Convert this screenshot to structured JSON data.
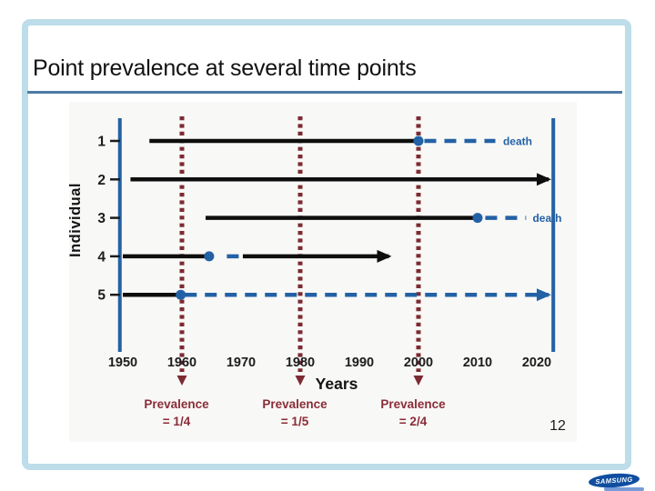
{
  "slide": {
    "title": "Point prevalence at several time points",
    "page_number": "12",
    "footer": {
      "brand": "SAMSUNG"
    }
  },
  "theme": {
    "frame": "#bcdde9",
    "title_rule": "#4d7ba7",
    "panel_bg": "#f8f8f6",
    "background": "#ffffff",
    "title_color": "#121212",
    "samsung_blue": "#0f4ea0"
  },
  "chart_data": {
    "type": "line",
    "title": "Point prevalence at several time points",
    "xlabel": "Years",
    "ylabel": "Individual",
    "x_ticks": [
      1950,
      1960,
      1970,
      1980,
      1990,
      2000,
      2010,
      2020
    ],
    "x_range": [
      1950,
      2020
    ],
    "x_axis_bounds": [
      1949.5,
      2022.8
    ],
    "grid": false,
    "individuals": [
      {
        "id": "1",
        "segments": [
          {
            "from": 1954.5,
            "to": 2000,
            "style": "solid"
          },
          {
            "from": 2001,
            "to": 2013,
            "style": "dashed"
          }
        ],
        "dots": [
          2000
        ],
        "death": {
          "year": 2014.3,
          "label": "death"
        }
      },
      {
        "id": "2",
        "segments": [
          {
            "from": 1951.3,
            "to": 2022,
            "style": "solid",
            "arrow": true
          }
        ],
        "dots": [],
        "death": null
      },
      {
        "id": "3",
        "segments": [
          {
            "from": 1964,
            "to": 2010,
            "style": "solid"
          },
          {
            "from": 2011.3,
            "to": 2018.2,
            "style": "dashed"
          }
        ],
        "dots": [
          2010
        ],
        "death": {
          "year": 2019.3,
          "label": "death"
        }
      },
      {
        "id": "4",
        "segments": [
          {
            "from": 1950,
            "to": 1964.6,
            "style": "solid"
          },
          {
            "from": 1967.6,
            "to": 1969.8,
            "style": "dashed"
          },
          {
            "from": 1970.3,
            "to": 1995,
            "style": "solid",
            "arrow": true
          }
        ],
        "dots": [
          1964.6
        ],
        "death": null
      },
      {
        "id": "5",
        "segments": [
          {
            "from": 1950,
            "to": 1959.8,
            "style": "solid"
          },
          {
            "from": 1960.5,
            "to": 2022,
            "style": "dashed",
            "arrow": true
          }
        ],
        "dots": [
          1959.8
        ],
        "death": null
      }
    ],
    "surveys": [
      {
        "year": 1960,
        "label": [
          "Prevalence",
          "= 1/4"
        ]
      },
      {
        "year": 1980,
        "label": [
          "Prevalence",
          "= 1/5"
        ]
      },
      {
        "year": 2000,
        "label": [
          "Prevalence",
          "= 2/4"
        ]
      }
    ],
    "colors": {
      "timeline_black": "#0e0e0e",
      "event_blue": "#2361a5",
      "survey_maroon": "#7d2a33",
      "prevalence_text": "#8a2d38",
      "axis_blue": "#2361a5",
      "death_text": "#2361a5"
    },
    "legend": null
  }
}
